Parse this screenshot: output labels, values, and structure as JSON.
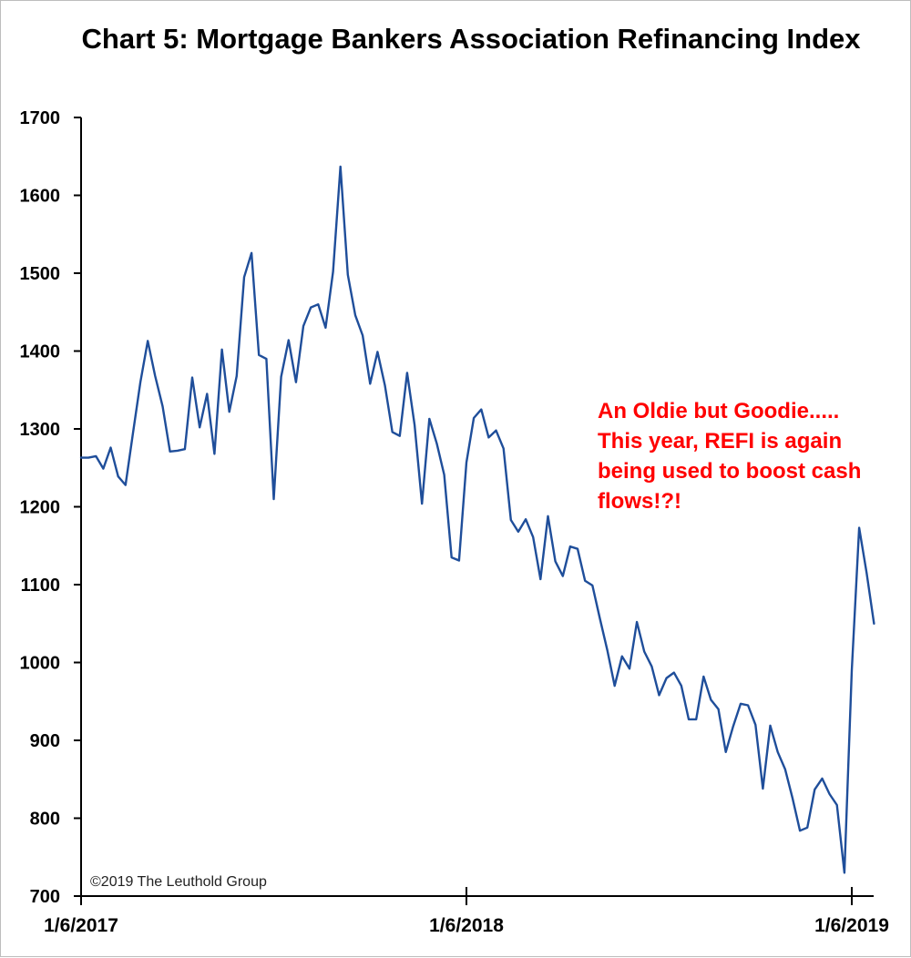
{
  "chart_data": {
    "type": "line",
    "title": "Chart 5: Mortgage Bankers Association Refinancing Index",
    "xlabel": "",
    "ylabel": "",
    "ylim": [
      700,
      1700
    ],
    "yticks": [
      1700,
      1600,
      1500,
      1400,
      1300,
      1200,
      1100,
      1000,
      900,
      800,
      700
    ],
    "xticks": [
      "1/6/2017",
      "1/6/2018",
      "1/6/2019"
    ],
    "line_color": "#1f4e9a",
    "grid": false,
    "annotation": [
      "An Oldie but Goodie.....",
      "This year, REFI is again",
      "being used to boost cash",
      "flows!?!"
    ],
    "annotation_color": "#ff0000",
    "copyright": "©2019 The Leuthold Group",
    "series": [
      {
        "values": [
          1263,
          1263,
          1265,
          1249,
          1276,
          1239,
          1228,
          1294,
          1360,
          1413,
          1368,
          1329,
          1271,
          1272,
          1274,
          1366,
          1302,
          1345,
          1268,
          1402,
          1322,
          1368,
          1495,
          1526,
          1395,
          1390,
          1210,
          1367,
          1414,
          1360,
          1432,
          1456,
          1460,
          1430,
          1502,
          1637,
          1498,
          1446,
          1420,
          1358,
          1399,
          1356,
          1296,
          1291,
          1372,
          1305,
          1204,
          1313,
          1281,
          1241,
          1135,
          1131,
          1257,
          1314,
          1325,
          1289,
          1298,
          1275,
          1183,
          1168,
          1184,
          1161,
          1107,
          1188,
          1130,
          1111,
          1149,
          1146,
          1105,
          1099,
          1057,
          1016,
          970,
          1008,
          992,
          1052,
          1014,
          995,
          958,
          980,
          987,
          970,
          927,
          927,
          982,
          952,
          940,
          885,
          918,
          947,
          945,
          920,
          838,
          919,
          885,
          863,
          826,
          784,
          788,
          837,
          851,
          831,
          817,
          730,
          990,
          1173,
          1115,
          1050
        ]
      }
    ]
  }
}
